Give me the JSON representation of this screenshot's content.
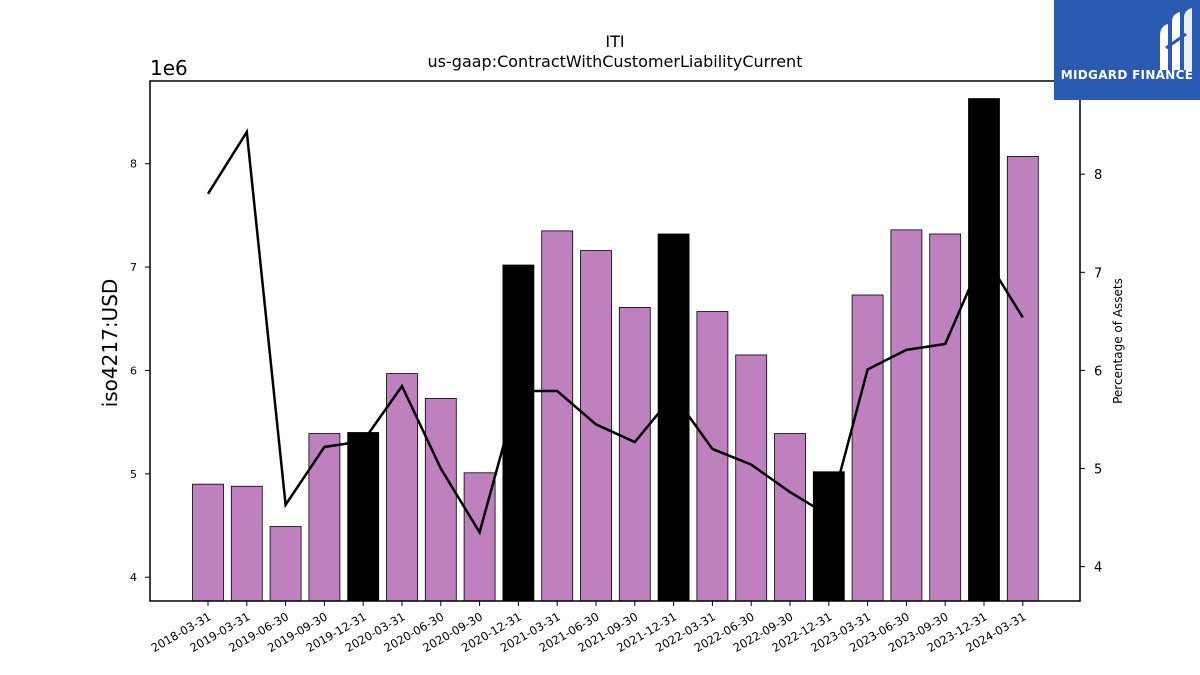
{
  "chart_data": {
    "type": "bar",
    "title": "ITI",
    "subtitle": "us-gaap:ContractWithCustomerLiabilityCurrent",
    "ylabel": "iso4217:USD",
    "y_scale_label": "1e6",
    "y2label": "Percentage of Assets",
    "ylim": [
      3.77,
      8.8
    ],
    "y2lim": [
      3.65,
      8.95
    ],
    "yticks": [
      "4",
      "5",
      "6",
      "7",
      "8"
    ],
    "y2ticks": [
      "4",
      "5",
      "6",
      "7",
      "8"
    ],
    "categories": [
      "2018-03-31",
      "2019-03-31",
      "2019-06-30",
      "2019-09-30",
      "2019-12-31",
      "2020-03-31",
      "2020-06-30",
      "2020-09-30",
      "2020-12-31",
      "2021-03-31",
      "2021-06-30",
      "2021-09-30",
      "2021-12-31",
      "2022-03-31",
      "2022-06-30",
      "2022-09-30",
      "2022-12-31",
      "2023-03-31",
      "2023-06-30",
      "2023-09-30",
      "2023-12-31",
      "2024-03-31"
    ],
    "values": [
      4.9,
      4.88,
      4.49,
      5.39,
      5.4,
      5.97,
      5.73,
      5.01,
      7.02,
      7.35,
      7.16,
      6.61,
      7.32,
      6.57,
      6.15,
      5.39,
      5.02,
      6.73,
      7.36,
      7.32,
      8.63,
      8.07
    ],
    "highlight": [
      false,
      false,
      false,
      false,
      true,
      false,
      false,
      false,
      true,
      false,
      false,
      false,
      true,
      false,
      false,
      false,
      true,
      false,
      false,
      false,
      true,
      false
    ],
    "line_values": [
      7.8,
      8.43,
      4.63,
      5.22,
      5.28,
      5.84,
      5.0,
      4.35,
      5.79,
      5.79,
      5.45,
      5.27,
      5.75,
      5.2,
      5.04,
      4.76,
      4.52,
      6.01,
      6.21,
      6.27,
      7.18,
      6.54
    ],
    "colors": {
      "bar": "#bf80bf",
      "highlight": "#000000",
      "line": "#000000"
    }
  },
  "logo": {
    "text": "MIDGARD FINANCE"
  }
}
